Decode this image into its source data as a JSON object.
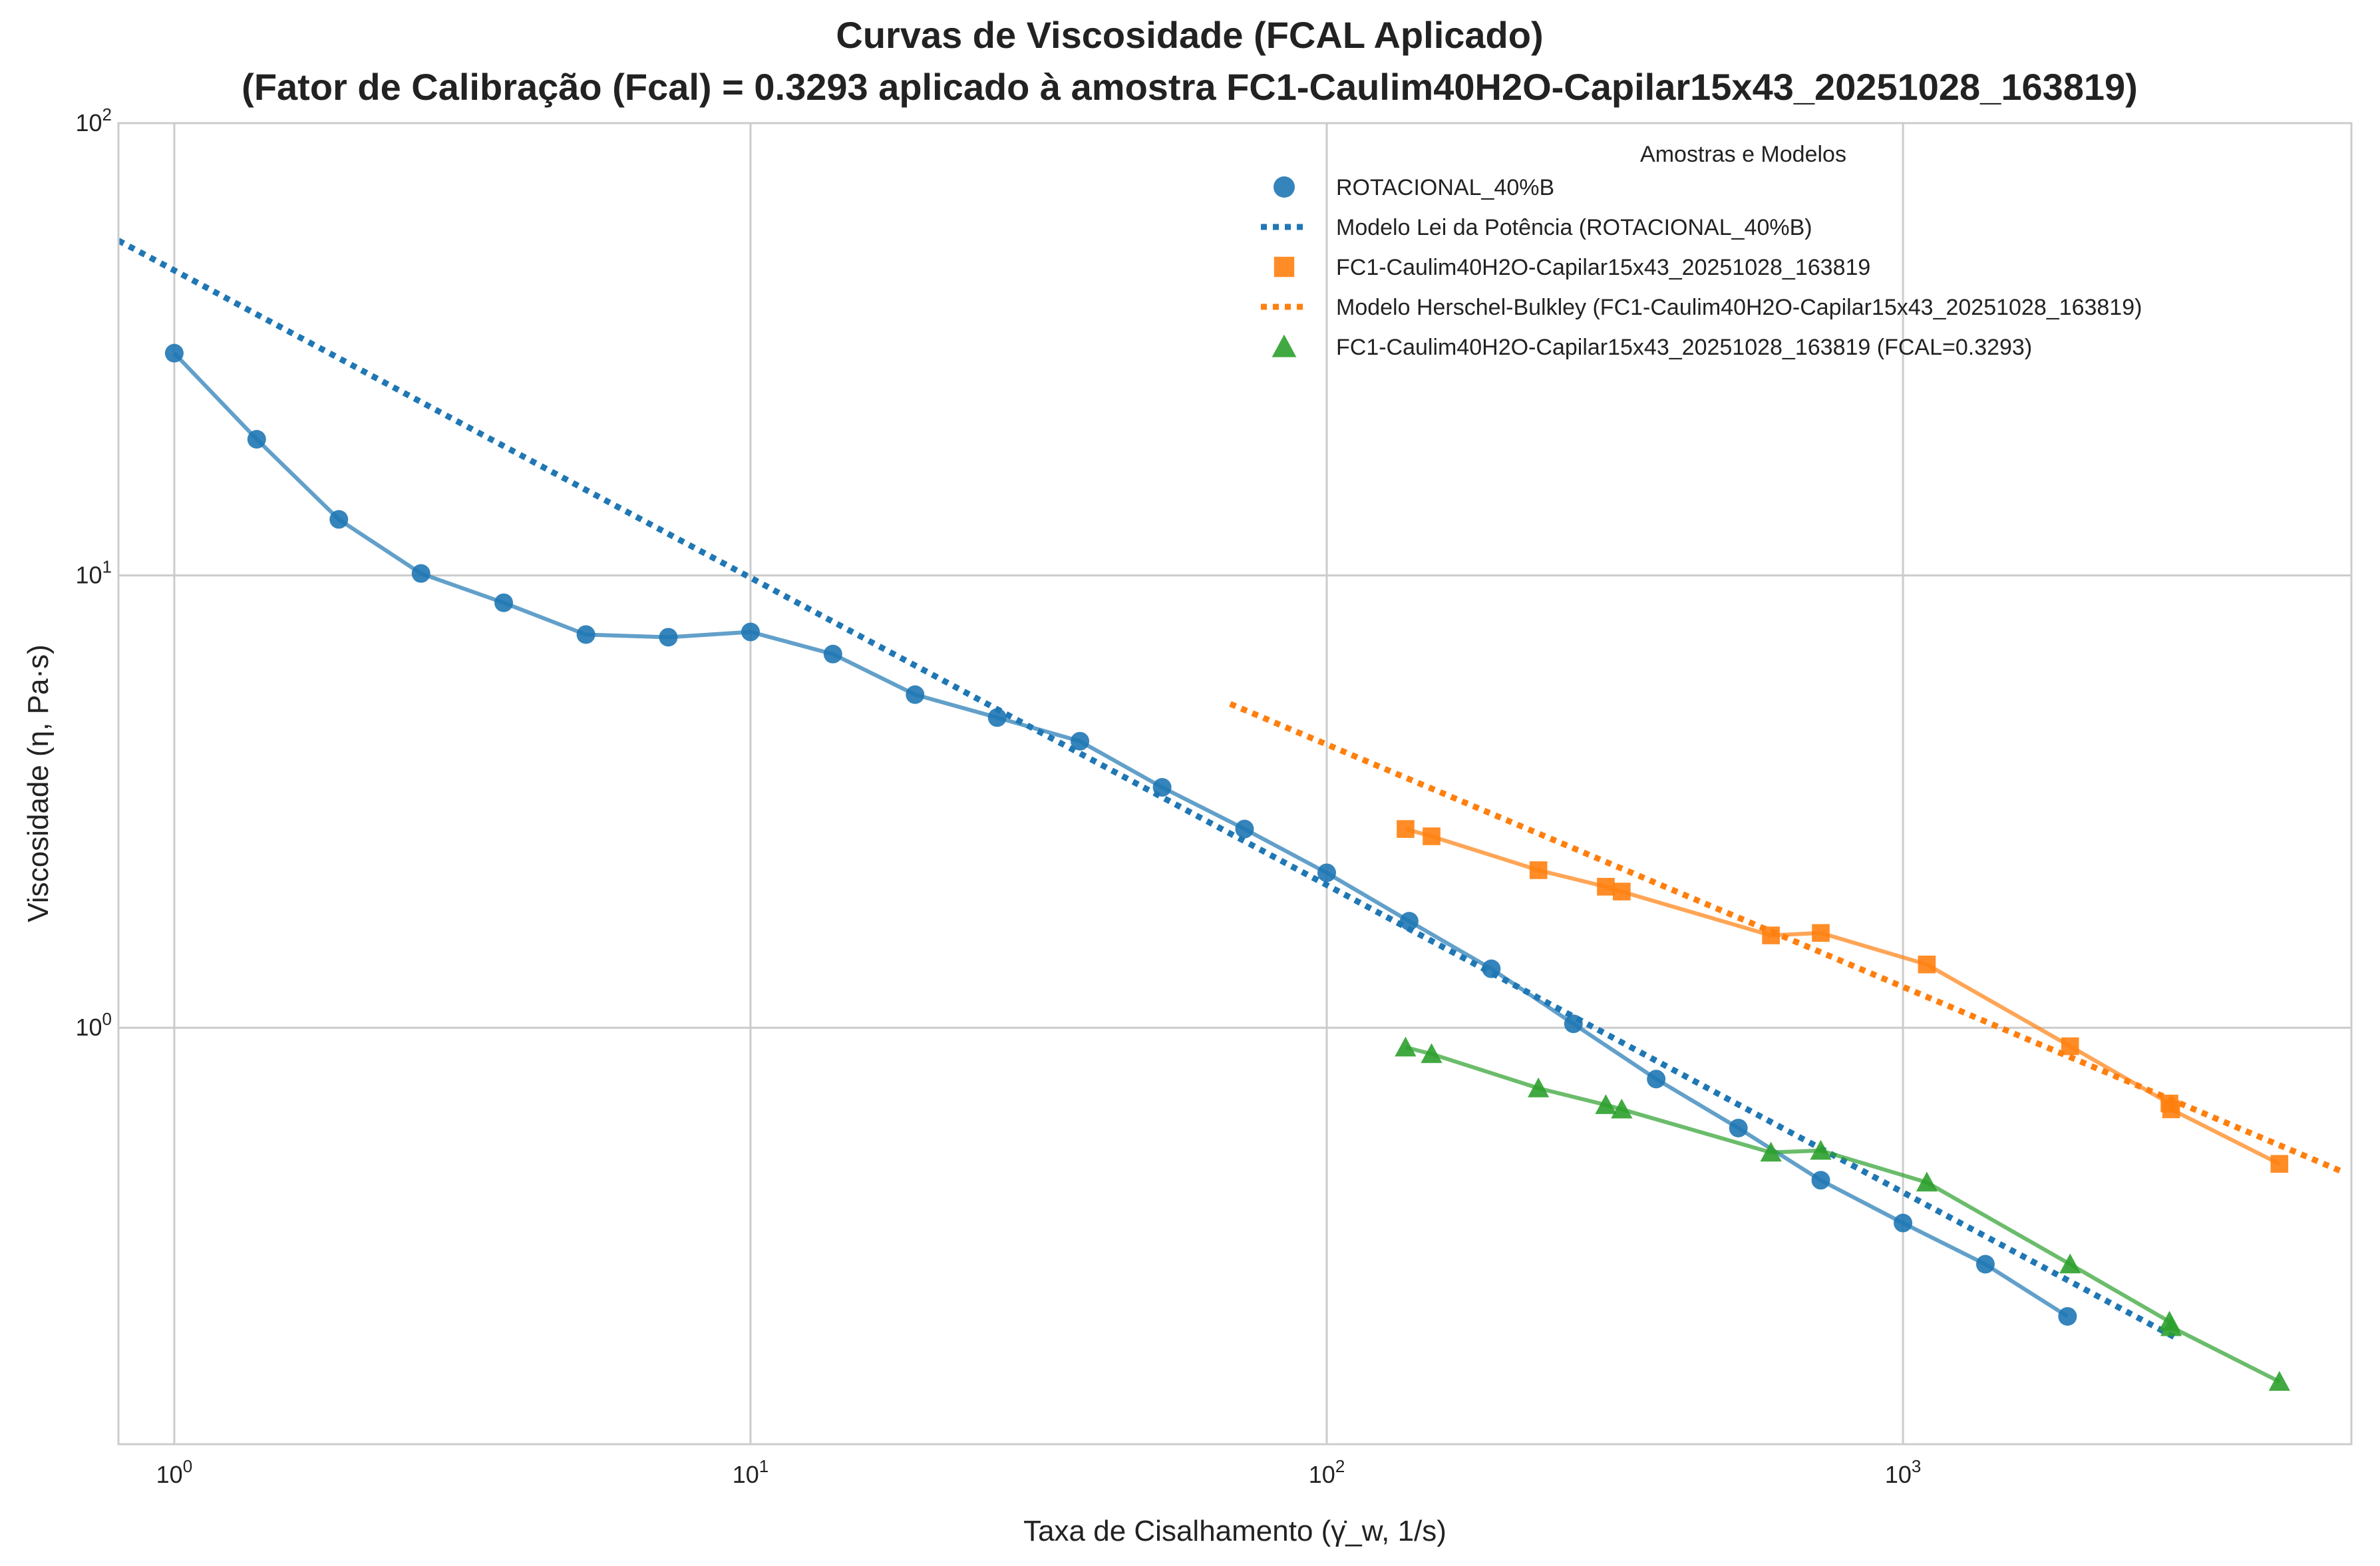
{
  "chart_data": {
    "type": "line",
    "title": "Curvas de Viscosidade (FCAL Aplicado)",
    "subtitle": "(Fator de Calibração (Fcal) = 0.3293 aplicado à amostra FC1-Caulim40H2O-Capilar15x43_20251028_163819)",
    "xlabel": "Taxa de Cisalhamento (γ̇_w, 1/s)",
    "ylabel": "Viscosidade (η, Pa·s)",
    "xscale": "log",
    "yscale": "log",
    "xlim": [
      0.8,
      6000
    ],
    "ylim": [
      0.12,
      100
    ],
    "xticks": [
      {
        "value": 1,
        "base": "10",
        "exp": "0"
      },
      {
        "value": 10,
        "base": "10",
        "exp": "1"
      },
      {
        "value": 100,
        "base": "10",
        "exp": "2"
      },
      {
        "value": 1000,
        "base": "10",
        "exp": "3"
      }
    ],
    "yticks": [
      {
        "value": 1,
        "base": "10",
        "exp": "0"
      },
      {
        "value": 10,
        "base": "10",
        "exp": "1"
      },
      {
        "value": 100,
        "base": "10",
        "exp": "2"
      }
    ],
    "grid": true,
    "legend": {
      "title": "Amostras e Modelos",
      "placement": "top-right"
    },
    "series": [
      {
        "name": "ROTACIONAL_40%B",
        "kind": "line-markers",
        "marker": "circle",
        "color": "#1f77b4",
        "in_legend": true,
        "x": [
          1.0,
          1.39,
          1.93,
          2.68,
          3.73,
          5.18,
          7.2,
          10.0,
          13.9,
          19.3,
          26.8,
          37.3,
          51.8,
          72.0,
          100,
          139,
          193,
          268,
          373,
          518,
          720,
          1000,
          1390,
          1930
        ],
        "y": [
          31.0,
          20.0,
          13.3,
          10.1,
          8.7,
          7.4,
          7.3,
          7.5,
          6.7,
          5.45,
          4.85,
          4.3,
          3.4,
          2.75,
          2.2,
          1.72,
          1.35,
          1.02,
          0.77,
          0.6,
          0.46,
          0.37,
          0.3,
          0.23
        ]
      },
      {
        "name": "Modelo Lei da Potência (ROTACIONAL_40%B)",
        "kind": "dotted-line",
        "color": "#1f77b4",
        "in_legend": true,
        "x": [
          0.8,
          3000
        ],
        "y": [
          55.0,
          0.205
        ]
      },
      {
        "name": "FC1-Caulim40H2O-Capilar15x43_20251028_163819",
        "kind": "line-markers",
        "marker": "square",
        "color": "#ff7f0e",
        "in_legend": true,
        "x": [
          137,
          152,
          233,
          305,
          325,
          590,
          720,
          1100,
          1950,
          2900,
          2920,
          4500
        ],
        "y": [
          2.75,
          2.65,
          2.23,
          2.05,
          2.0,
          1.6,
          1.62,
          1.38,
          0.91,
          0.68,
          0.66,
          0.5
        ]
      },
      {
        "name": "Modelo Herschel-Bulkley (FC1-Caulim40H2O-Capilar15x43_20251028_163819)",
        "kind": "dotted-line",
        "color": "#ff7f0e",
        "in_legend": true,
        "x": [
          68,
          5800
        ],
        "y": [
          5.2,
          0.48
        ]
      },
      {
        "name": "FC1-Caulim40H2O-Capilar15x43_20251028_163819 (FCAL=0.3293)",
        "kind": "line-markers",
        "marker": "triangle",
        "color": "#2ca02c",
        "in_legend": true,
        "x": [
          137,
          152,
          233,
          305,
          325,
          590,
          720,
          1100,
          1950,
          2900,
          2920,
          4500
        ],
        "y": [
          0.905,
          0.875,
          0.735,
          0.675,
          0.66,
          0.53,
          0.535,
          0.455,
          0.3,
          0.224,
          0.218,
          0.165
        ]
      }
    ]
  }
}
